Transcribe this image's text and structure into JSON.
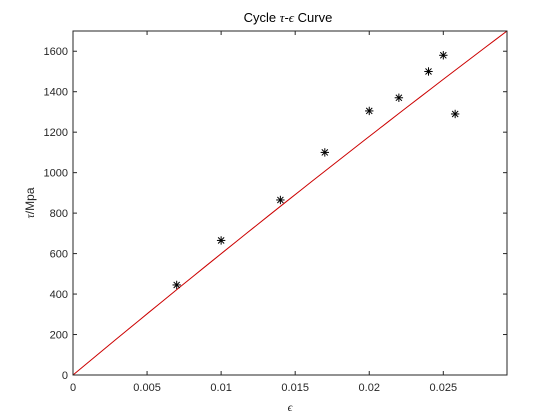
{
  "chart_data": {
    "type": "scatter",
    "title_parts": {
      "prefix": "Cycle ",
      "tau": "τ",
      "dash": "-",
      "eps": "ϵ",
      "suffix": " Curve"
    },
    "xlabel": "ϵ",
    "ylabel_parts": {
      "tau": "τ",
      "unit": "/Mpa"
    },
    "xlim": [
      0,
      0.0293
    ],
    "ylim": [
      0,
      1700
    ],
    "xticks": [
      0,
      0.005,
      0.01,
      0.015,
      0.02,
      0.025
    ],
    "xtick_labels": [
      "0",
      "0.005",
      "0.01",
      "0.015",
      "0.02",
      "0.025"
    ],
    "yticks": [
      0,
      200,
      400,
      600,
      800,
      1000,
      1200,
      1400,
      1600
    ],
    "ytick_labels": [
      "0",
      "200",
      "400",
      "600",
      "800",
      "1000",
      "1200",
      "1400",
      "1600"
    ],
    "grid": false,
    "series": [
      {
        "type": "scatter",
        "marker": "asterisk",
        "color": "#000000",
        "x": [
          0.007,
          0.01,
          0.014,
          0.017,
          0.02,
          0.022,
          0.024,
          0.025,
          0.0258
        ],
        "y": [
          445,
          665,
          865,
          1100,
          1305,
          1370,
          1500,
          1580,
          1290
        ]
      },
      {
        "type": "line",
        "color": "#cc0000",
        "x": [
          0,
          0.0293
        ],
        "y": [
          0,
          1700
        ],
        "curvature": 0.05
      }
    ]
  }
}
